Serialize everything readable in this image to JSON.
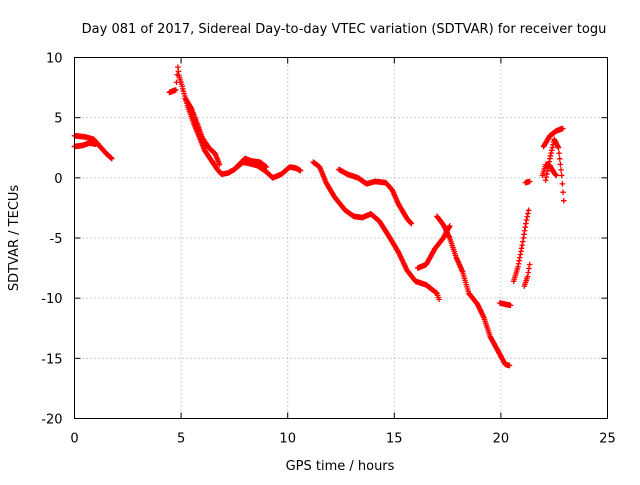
{
  "chart_data": {
    "type": "scatter",
    "title": "Day 081 of 2017, Sidereal Day-to-day VTEC variation (SDTVAR) for receiver togu",
    "xlabel": "GPS time / hours",
    "ylabel": "SDTVAR / TECUs",
    "xlim": [
      0,
      25
    ],
    "ylim": [
      -20,
      10
    ],
    "xticks": [
      0,
      5,
      10,
      15,
      20,
      25
    ],
    "yticks": [
      -20,
      -15,
      -10,
      -5,
      0,
      5,
      10
    ],
    "grid": true,
    "marker": "plus",
    "color": "#ff0000",
    "series": [
      {
        "name": "SDTVAR",
        "segments": [
          [
            [
              0.0,
              3.5
            ],
            [
              0.5,
              3.4
            ],
            [
              0.9,
              3.2
            ],
            [
              1.2,
              2.6
            ],
            [
              1.5,
              2.0
            ],
            [
              1.75,
              1.6
            ]
          ],
          [
            [
              0.0,
              2.6
            ],
            [
              0.4,
              2.7
            ],
            [
              0.7,
              2.9
            ],
            [
              1.0,
              2.8
            ]
          ],
          [
            [
              4.45,
              7.1
            ],
            [
              4.75,
              7.3
            ],
            [
              4.85,
              9.2
            ],
            [
              4.9,
              8.5
            ],
            [
              5.05,
              7.6
            ],
            [
              5.3,
              6.0
            ],
            [
              5.6,
              4.5
            ],
            [
              5.9,
              3.2
            ],
            [
              6.1,
              2.3
            ],
            [
              6.4,
              1.5
            ],
            [
              6.7,
              0.7
            ],
            [
              6.9,
              0.3
            ],
            [
              7.2,
              0.4
            ],
            [
              7.5,
              0.7
            ],
            [
              7.9,
              1.3
            ],
            [
              8.2,
              1.2
            ],
            [
              8.6,
              1.0
            ],
            [
              9.0,
              0.5
            ],
            [
              9.3,
              0.0
            ],
            [
              9.7,
              0.3
            ],
            [
              10.1,
              0.9
            ],
            [
              10.4,
              0.8
            ],
            [
              10.6,
              0.6
            ]
          ],
          [
            [
              5.2,
              6.6
            ],
            [
              5.5,
              5.7
            ],
            [
              5.8,
              4.3
            ],
            [
              6.0,
              3.3
            ],
            [
              6.3,
              2.5
            ],
            [
              6.6,
              2.0
            ],
            [
              6.8,
              1.1
            ]
          ],
          [
            [
              7.6,
              0.9
            ],
            [
              8.0,
              1.6
            ],
            [
              8.3,
              1.4
            ],
            [
              8.7,
              1.3
            ],
            [
              9.0,
              0.9
            ]
          ],
          [
            [
              11.2,
              1.3
            ],
            [
              11.5,
              0.9
            ],
            [
              11.8,
              -0.4
            ],
            [
              12.2,
              -1.6
            ],
            [
              12.7,
              -2.7
            ],
            [
              13.1,
              -3.2
            ],
            [
              13.5,
              -3.3
            ],
            [
              13.9,
              -3.0
            ],
            [
              14.3,
              -3.6
            ],
            [
              14.8,
              -5.0
            ],
            [
              15.2,
              -6.2
            ],
            [
              15.6,
              -7.7
            ],
            [
              16.0,
              -8.6
            ],
            [
              16.5,
              -8.9
            ],
            [
              17.0,
              -9.6
            ],
            [
              17.1,
              -10.1
            ]
          ],
          [
            [
              12.4,
              0.7
            ],
            [
              12.8,
              0.3
            ],
            [
              13.3,
              0.0
            ],
            [
              13.7,
              -0.5
            ],
            [
              14.1,
              -0.3
            ],
            [
              14.6,
              -0.4
            ],
            [
              14.9,
              -1.0
            ],
            [
              15.2,
              -2.2
            ],
            [
              15.6,
              -3.4
            ],
            [
              15.8,
              -3.8
            ]
          ],
          [
            [
              16.1,
              -7.5
            ],
            [
              16.5,
              -7.2
            ],
            [
              16.9,
              -5.9
            ],
            [
              17.3,
              -5.0
            ],
            [
              17.6,
              -4.0
            ]
          ],
          [
            [
              17.0,
              -3.2
            ],
            [
              17.3,
              -3.9
            ],
            [
              17.6,
              -5.0
            ],
            [
              17.9,
              -6.6
            ],
            [
              18.2,
              -7.8
            ],
            [
              18.5,
              -9.6
            ],
            [
              18.9,
              -10.5
            ],
            [
              19.2,
              -11.6
            ],
            [
              19.5,
              -13.2
            ],
            [
              19.9,
              -14.5
            ],
            [
              20.2,
              -15.5
            ],
            [
              20.4,
              -15.6
            ]
          ],
          [
            [
              19.95,
              -10.4
            ],
            [
              20.2,
              -10.5
            ],
            [
              20.45,
              -10.6
            ]
          ],
          [
            [
              20.6,
              -8.6
            ],
            [
              20.8,
              -7.4
            ],
            [
              21.0,
              -5.6
            ],
            [
              21.2,
              -3.5
            ],
            [
              21.3,
              -2.7
            ]
          ],
          [
            [
              21.1,
              -9.0
            ],
            [
              21.25,
              -8.2
            ],
            [
              21.35,
              -7.2
            ]
          ],
          [
            [
              21.15,
              -0.4
            ],
            [
              21.35,
              -0.3
            ]
          ],
          [
            [
              21.95,
              0.2
            ],
            [
              22.1,
              1.1
            ],
            [
              22.3,
              1.0
            ],
            [
              22.5,
              0.4
            ],
            [
              22.6,
              0.2
            ]
          ],
          [
            [
              22.0,
              2.6
            ],
            [
              22.3,
              3.5
            ],
            [
              22.6,
              3.9
            ],
            [
              22.9,
              4.1
            ]
          ],
          [
            [
              22.1,
              -0.2
            ],
            [
              22.3,
              1.6
            ],
            [
              22.5,
              3.2
            ],
            [
              22.7,
              2.5
            ],
            [
              22.85,
              0.2
            ],
            [
              22.95,
              -1.9
            ]
          ]
        ]
      }
    ]
  }
}
